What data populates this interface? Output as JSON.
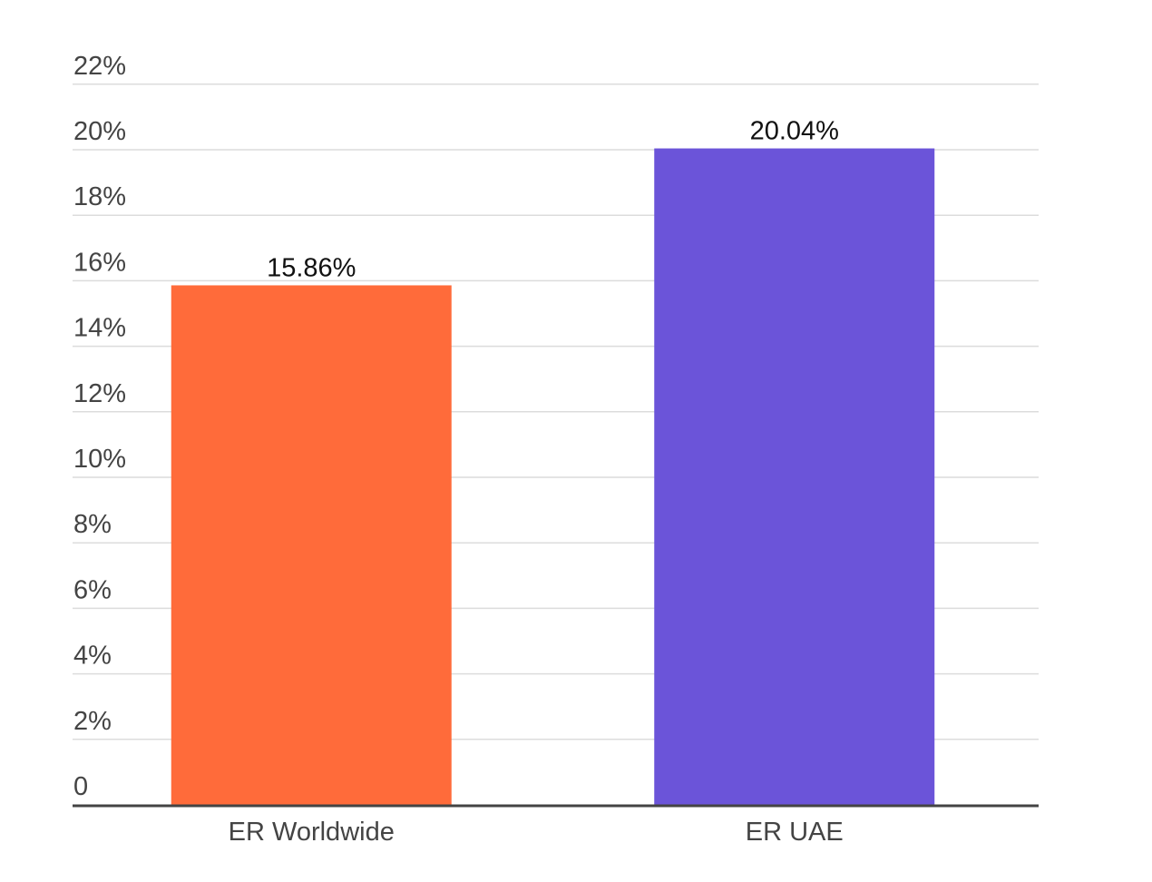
{
  "chart_data": {
    "type": "bar",
    "title": "",
    "xlabel": "",
    "ylabel": "",
    "categories": [
      "ER Worldwide",
      "ER UAE"
    ],
    "values": [
      15.86,
      20.04
    ],
    "data_labels": [
      "15.86%",
      "20.04%"
    ],
    "colors": [
      "#ff6b3a",
      "#6b54d9"
    ],
    "ylim": [
      0,
      22
    ],
    "yticks": [
      0,
      2,
      4,
      6,
      8,
      10,
      12,
      14,
      16,
      18,
      20,
      22
    ],
    "ytick_labels": [
      "0",
      "2%",
      "4%",
      "6%",
      "8%",
      "10%",
      "12%",
      "14%",
      "16%",
      "18%",
      "20%",
      "22%"
    ],
    "grid": true,
    "legend": "none"
  }
}
